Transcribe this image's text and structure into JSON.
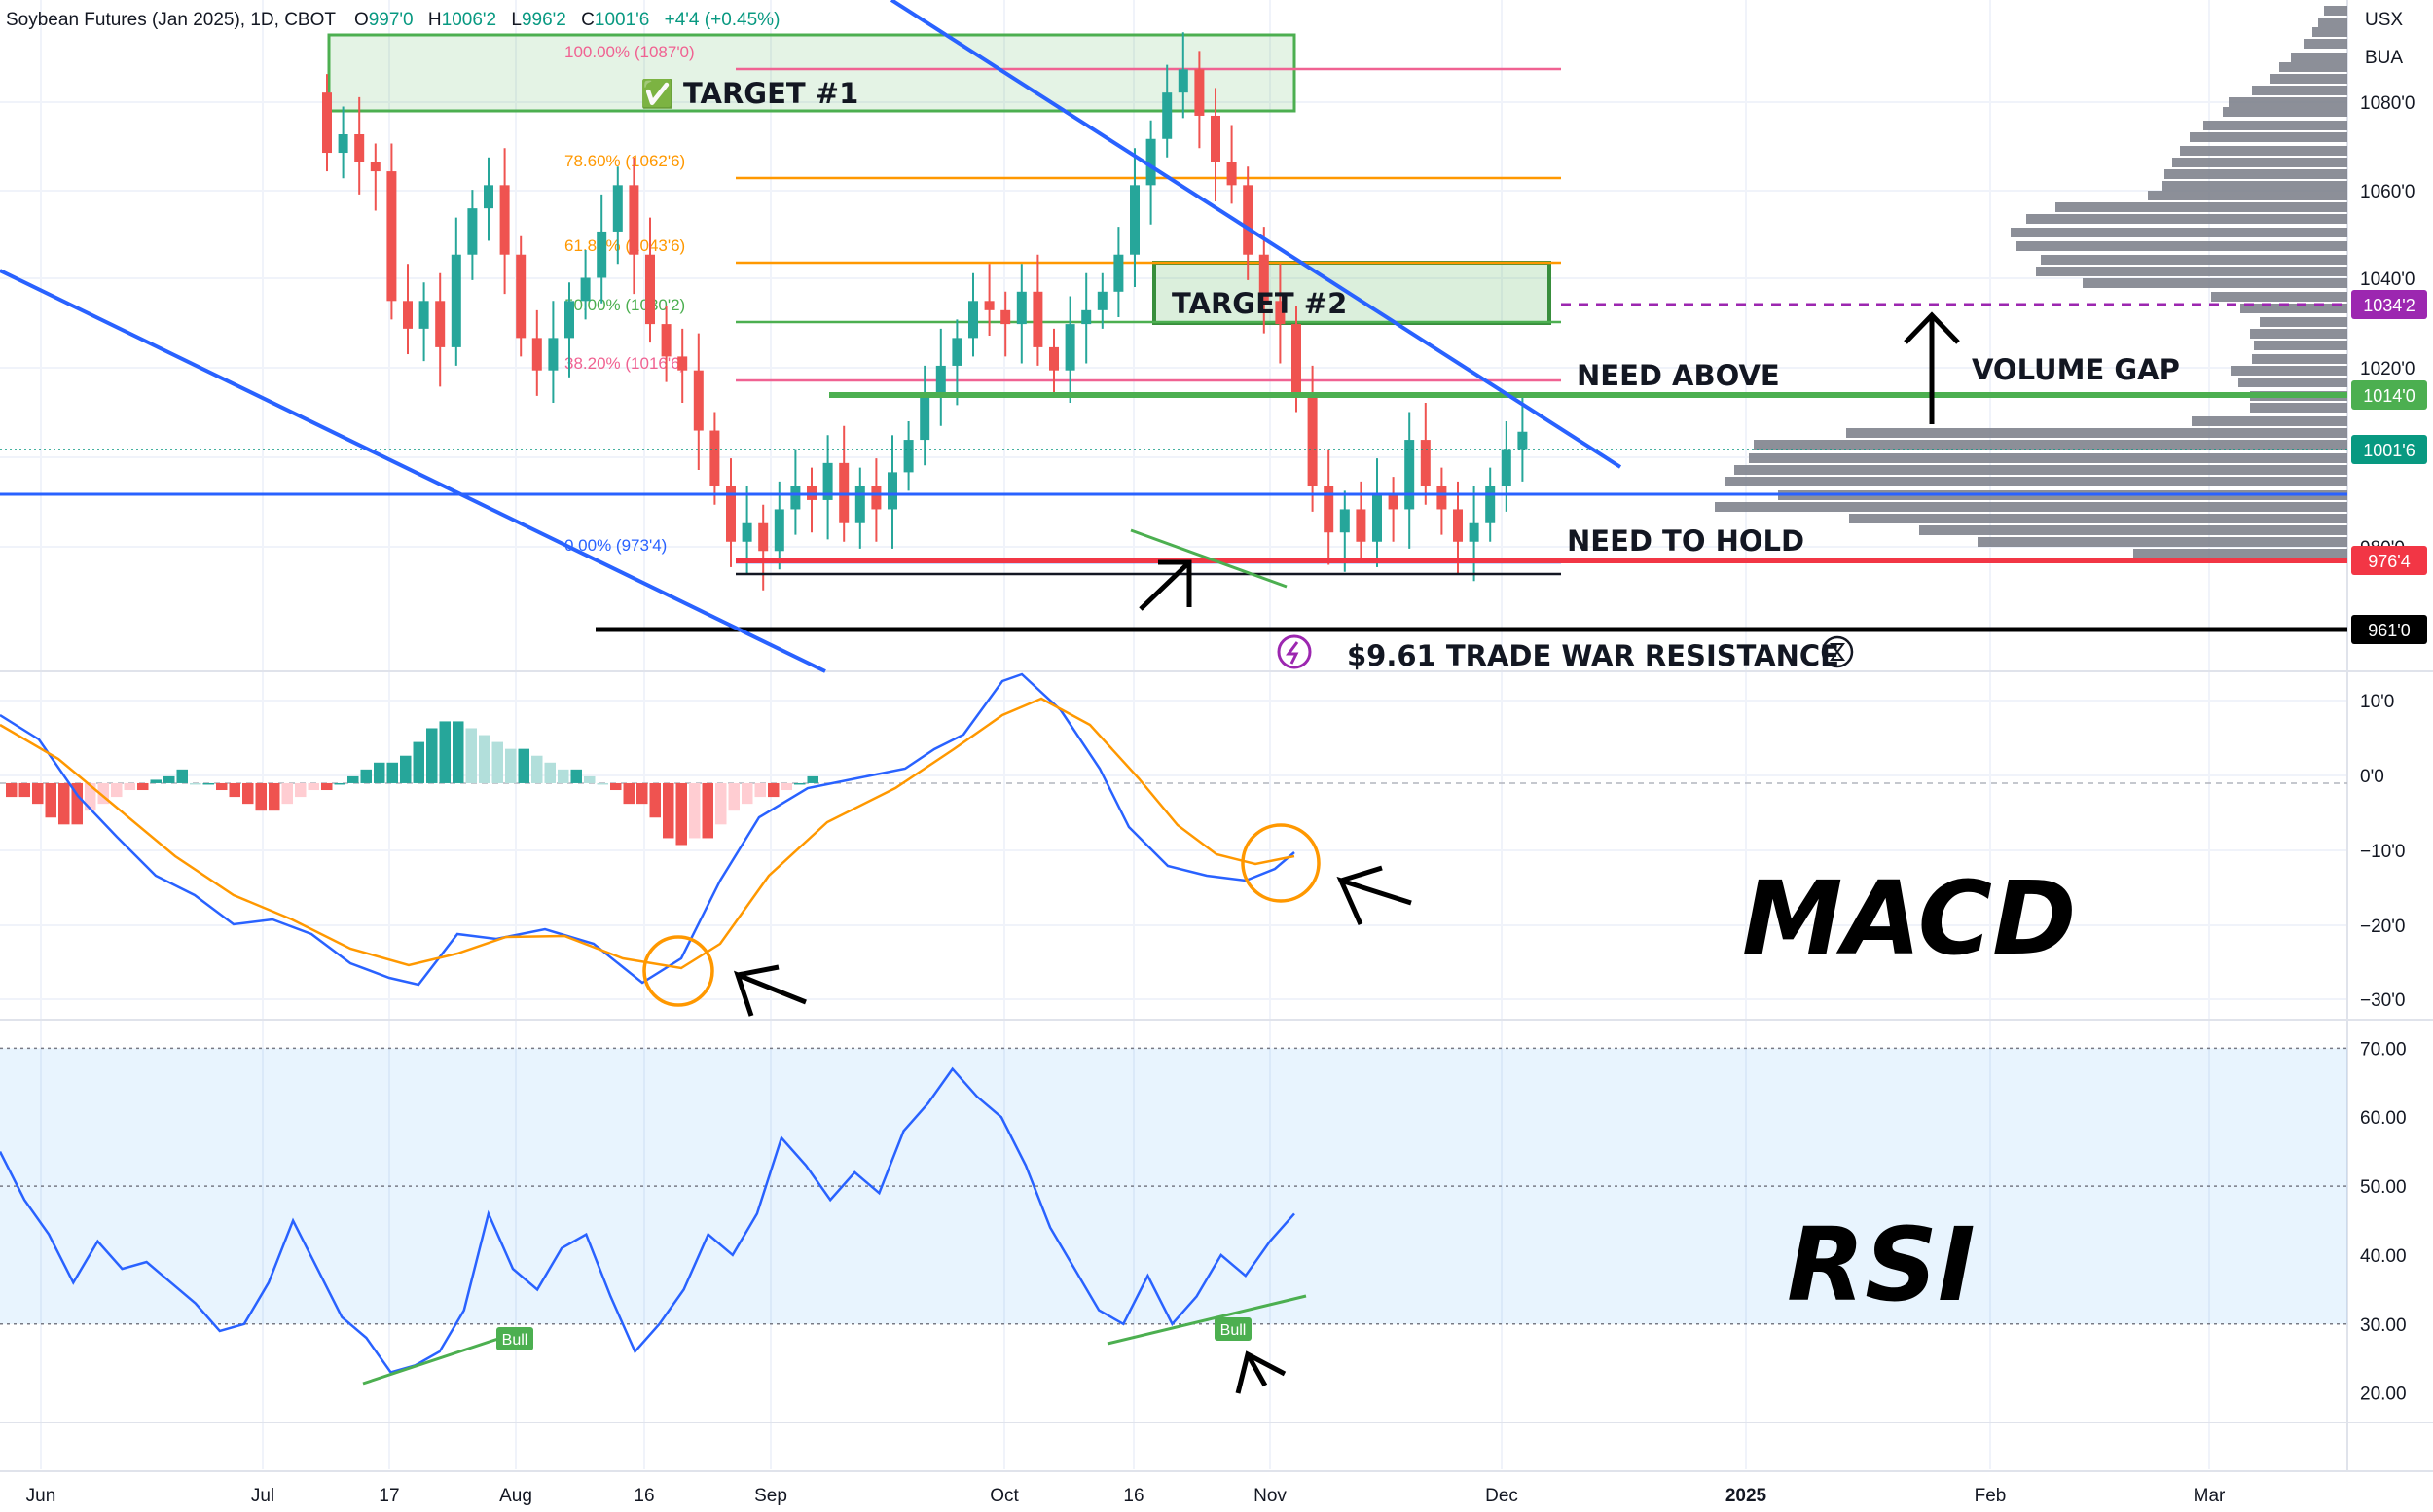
{
  "header": {
    "symbol": "Soybean Futures (Jan 2025), 1D, CBOT",
    "open_label": "O",
    "open": "997'0",
    "high_label": "H",
    "high": "1006'2",
    "low_label": "L",
    "low": "996'2",
    "close_label": "C",
    "close": "1001'6",
    "change": "+4'4 (+0.45%)"
  },
  "scale_buttons": [
    "USX",
    "BUA"
  ],
  "colors": {
    "up": "#26a69a",
    "down": "#ef5350",
    "up_light": "#b2dfdb",
    "down_light": "#ffcdd2",
    "trend": "#2962ff",
    "green": "#4caf50",
    "red": "#f23645",
    "purple": "#9c27b0",
    "orange": "#ff9800",
    "volume": "#787b86"
  },
  "price_axis": {
    "ticks": [
      "1080'0",
      "1060'0",
      "1040'0",
      "1020'0",
      "980'0"
    ]
  },
  "price_tags": [
    {
      "label": "1034'2",
      "color": "#9c27b0"
    },
    {
      "label": "1014'0",
      "color": "#4caf50"
    },
    {
      "label": "1001'6",
      "color": "#089981"
    },
    {
      "label": "976'4",
      "color": "#f23645"
    },
    {
      "label": "961'0",
      "color": "#000000"
    }
  ],
  "fib_levels": [
    {
      "label": "100.00% (1087'0)",
      "color": "#f06292"
    },
    {
      "label": "78.60% (1062'6)",
      "color": "#ff9800"
    },
    {
      "label": "61.80% (1043'6)",
      "color": "#ff9800"
    },
    {
      "label": "50.00% (1030'2)",
      "color": "#4caf50"
    },
    {
      "label": "38.20% (1016'6)",
      "color": "#f06292"
    },
    {
      "label": "0.00% (973'4)",
      "color": "#2962ff"
    }
  ],
  "annotations": {
    "target1_check": "✅",
    "target1": "TARGET #1",
    "target2": "TARGET #2",
    "need_above": "NEED ABOVE",
    "volume_gap": "VOLUME GAP",
    "need_to_hold": "NEED TO HOLD",
    "trade_war": "$9.61 TRADE WAR RESISTANCE",
    "macd_title": "MACD",
    "rsi_title": "RSI",
    "bull": "Bull"
  },
  "macd_axis": {
    "ticks": [
      "10'0",
      "0'0",
      "−10'0",
      "−20'0",
      "−30'0"
    ]
  },
  "rsi_axis": {
    "ticks": [
      "70.00",
      "60.00",
      "50.00",
      "40.00",
      "30.00",
      "20.00"
    ]
  },
  "time_axis": {
    "ticks": [
      "Jun",
      "Jul",
      "17",
      "Aug",
      "16",
      "Sep",
      "Oct",
      "16",
      "Nov",
      "Dec",
      "2025",
      "Feb",
      "Mar"
    ]
  },
  "chart_data": {
    "type": "candlestick",
    "series_close": [
      1062,
      1066,
      1060,
      1058,
      1030,
      1024,
      1030,
      1020,
      1040,
      1050,
      1055,
      1040,
      1022,
      1015,
      1022,
      1030,
      1035,
      1045,
      1055,
      1040,
      1025,
      1018,
      1015,
      1002,
      990,
      978,
      982,
      976,
      985,
      990,
      987,
      995,
      982,
      990,
      985,
      993,
      1000,
      1010,
      1016,
      1022,
      1030,
      1028,
      1025,
      1032,
      1020,
      1015,
      1025,
      1028,
      1032,
      1040,
      1055,
      1065,
      1075,
      1080,
      1070,
      1060,
      1055,
      1040,
      1030,
      1025,
      1010,
      990,
      980,
      985,
      978,
      988,
      985,
      1000,
      990,
      985,
      978,
      982,
      990,
      998,
      1001.75
    ],
    "macd": {
      "histogram": [
        -2,
        -3,
        -5,
        -6,
        -4,
        -3,
        -2,
        -1,
        0.5,
        1,
        2,
        0,
        -1,
        -2,
        -3,
        -4,
        -3,
        -2,
        -1,
        0,
        1,
        2,
        3,
        4,
        6,
        8,
        9,
        8,
        7,
        6,
        5,
        4,
        3,
        2,
        1,
        0,
        -1,
        -3,
        -5,
        -8,
        -9,
        -8,
        -6,
        -4,
        -3,
        -2,
        -1,
        0,
        1
      ],
      "macd_line_range": [
        -29,
        13
      ],
      "signal_line_range": [
        -27,
        10
      ]
    },
    "rsi": {
      "values": [
        55,
        48,
        43,
        36,
        42,
        38,
        39,
        36,
        33,
        29,
        30,
        36,
        45,
        38,
        31,
        28,
        23,
        24,
        26,
        32,
        46,
        38,
        35,
        41,
        43,
        34,
        26,
        30,
        35,
        43,
        40,
        46,
        57,
        53,
        48,
        52,
        49,
        58,
        62,
        67,
        63,
        60,
        53,
        44,
        38,
        32,
        30,
        37,
        30,
        34,
        40,
        37,
        42,
        46
      ],
      "band": [
        30,
        70
      ],
      "midline": 50
    },
    "ylim_price": [
      950,
      1095
    ],
    "ylim_macd": [
      -34,
      16
    ],
    "ylim_rsi": [
      16,
      74
    ]
  }
}
